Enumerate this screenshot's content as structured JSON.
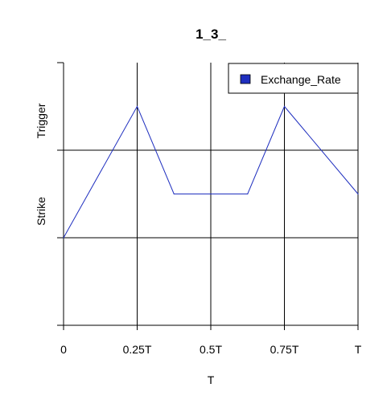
{
  "chart_data": {
    "type": "line",
    "title": "1_3_",
    "xlabel": "T",
    "ylabel_ticks": [
      {
        "label": "Strike",
        "value": 2
      },
      {
        "label": "Trigger",
        "value": 3
      }
    ],
    "x_ticks": [
      {
        "label": "0",
        "value": 0
      },
      {
        "label": "0.25T",
        "value": 0.25
      },
      {
        "label": "0.5T",
        "value": 0.5
      },
      {
        "label": "0.75T",
        "value": 0.75
      },
      {
        "label": "T",
        "value": 1
      }
    ],
    "xlim": [
      0,
      1
    ],
    "ylim": [
      1,
      4
    ],
    "y_gridlines": [
      2,
      3
    ],
    "grid": true,
    "legend_position": "top-right",
    "series": [
      {
        "name": "Exchange_Rate",
        "color": "#1f2fbf",
        "x": [
          0,
          0.25,
          0.375,
          0.625,
          0.75,
          1
        ],
        "y": [
          2,
          3.5,
          2.5,
          2.5,
          3.5,
          2.5
        ]
      }
    ]
  }
}
